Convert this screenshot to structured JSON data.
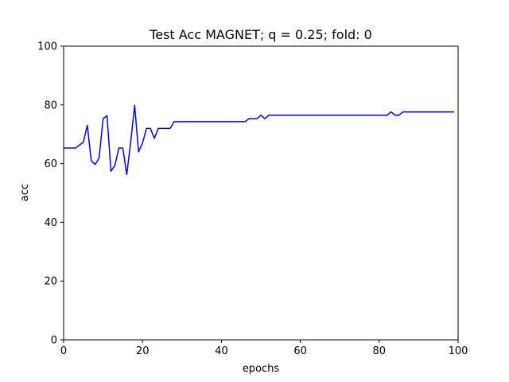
{
  "chart_data": {
    "type": "line",
    "title": "Test Acc MAGNET; q = 0.25; fold: 0",
    "xlabel": "epochs",
    "ylabel": "acc",
    "xlim": [
      0,
      100
    ],
    "ylim": [
      0,
      100
    ],
    "xticks": [
      0,
      20,
      40,
      60,
      80,
      100
    ],
    "yticks": [
      0,
      20,
      40,
      60,
      80,
      100
    ],
    "grid": false,
    "series": [
      {
        "color": "#0000ff",
        "x": [
          0,
          1,
          2,
          3,
          4,
          5,
          6,
          7,
          8,
          9,
          10,
          11,
          12,
          13,
          14,
          15,
          16,
          17,
          18,
          19,
          20,
          21,
          22,
          23,
          24,
          25,
          26,
          27,
          28,
          29,
          30,
          31,
          32,
          33,
          34,
          35,
          36,
          37,
          38,
          39,
          40,
          41,
          42,
          43,
          44,
          45,
          46,
          47,
          48,
          49,
          50,
          51,
          52,
          53,
          54,
          55,
          56,
          57,
          58,
          59,
          60,
          61,
          62,
          63,
          64,
          65,
          66,
          67,
          68,
          69,
          70,
          71,
          72,
          73,
          74,
          75,
          76,
          77,
          78,
          79,
          80,
          81,
          82,
          83,
          84,
          85,
          86,
          87,
          88,
          89,
          90,
          91,
          92,
          93,
          94,
          95,
          96,
          97,
          98,
          99
        ],
        "y": [
          65.3,
          65.3,
          65.3,
          65.3,
          66.3,
          67.3,
          73.1,
          61.0,
          59.7,
          62.0,
          75.3,
          76.3,
          57.4,
          59.4,
          65.3,
          65.3,
          56.3,
          67.3,
          79.9,
          64.0,
          67.0,
          72.0,
          72.0,
          68.6,
          72.0,
          72.0,
          72.0,
          72.0,
          74.3,
          74.3,
          74.3,
          74.3,
          74.3,
          74.3,
          74.3,
          74.3,
          74.3,
          74.3,
          74.3,
          74.3,
          74.3,
          74.3,
          74.3,
          74.3,
          74.3,
          74.3,
          74.3,
          75.3,
          75.3,
          75.3,
          76.5,
          75.3,
          76.5,
          76.5,
          76.5,
          76.5,
          76.5,
          76.5,
          76.5,
          76.5,
          76.5,
          76.5,
          76.5,
          76.5,
          76.5,
          76.5,
          76.5,
          76.5,
          76.5,
          76.5,
          76.5,
          76.5,
          76.5,
          76.5,
          76.5,
          76.5,
          76.5,
          76.5,
          76.5,
          76.5,
          76.5,
          76.5,
          76.5,
          77.6,
          76.5,
          76.5,
          77.6,
          77.6,
          77.6,
          77.6,
          77.6,
          77.6,
          77.6,
          77.6,
          77.6,
          77.6,
          77.6,
          77.6,
          77.6,
          77.6
        ]
      }
    ]
  }
}
